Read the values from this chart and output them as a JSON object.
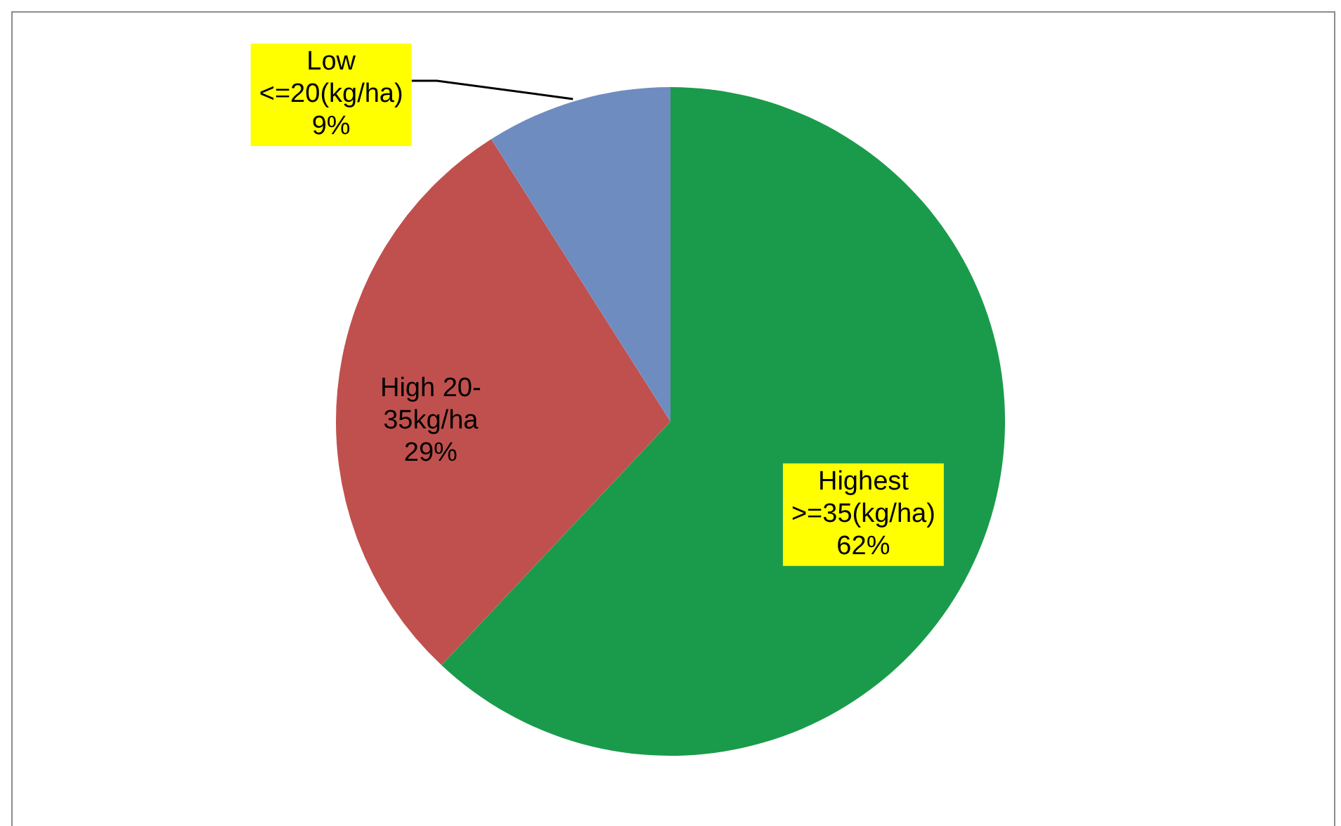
{
  "chart_data": {
    "type": "pie",
    "categories": [
      "Highest\n>=35(kg/ha)",
      "High 20-\n35kg/ha",
      "Low\n<=20(kg/ha)"
    ],
    "values": [
      62,
      29,
      9
    ],
    "value_labels": [
      "62%",
      "29%",
      "9%"
    ],
    "colors": [
      "#1a9b4b",
      "#c0504d",
      "#6f8cc0"
    ],
    "legend": false
  }
}
